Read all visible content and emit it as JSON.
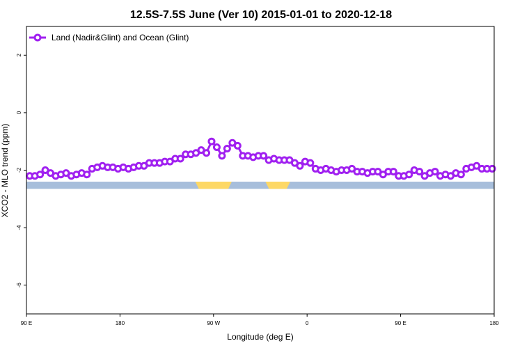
{
  "chart_data": {
    "type": "line",
    "title": "12.5S-7.5S June (Ver 10)   2015-01-01 to 2020-12-18",
    "xlabel": "Longitude (deg E)",
    "ylabel": "XCO2 - MLO trend (ppm)",
    "xlim": [
      90,
      450
    ],
    "ylim": [
      -7,
      3
    ],
    "x_ticks": [
      {
        "value": 90,
        "label": "90 E"
      },
      {
        "value": 162,
        "label": "180"
      },
      {
        "value": 234,
        "label": "90 W"
      },
      {
        "value": 306,
        "label": "0"
      },
      {
        "value": 378,
        "label": "90 E"
      },
      {
        "value": 450,
        "label": "180"
      }
    ],
    "y_ticks": [
      {
        "value": 2,
        "label": "2"
      },
      {
        "value": 0,
        "label": "0"
      },
      {
        "value": -2,
        "label": "-2"
      },
      {
        "value": -4,
        "label": "-4"
      },
      {
        "value": -6,
        "label": "-6"
      }
    ],
    "legend": {
      "placement": "top-left",
      "entries": [
        "Land (Nadir&Glint) and Ocean (Glint)"
      ]
    },
    "series": [
      {
        "name": "Land (Nadir&Glint) and Ocean (Glint)",
        "color": "#a020f0",
        "x": [
          92.5,
          96.5,
          100.5,
          104.5,
          108.5,
          112.5,
          116.5,
          120.5,
          124.5,
          128.5,
          132.5,
          136.5,
          140.5,
          144.5,
          148.5,
          152.5,
          156.5,
          160.5,
          164.5,
          168.5,
          172.5,
          176.5,
          180.5,
          184.5,
          188.5,
          192.5,
          196.5,
          200.5,
          204.5,
          208.5,
          212.5,
          216.5,
          220.5,
          224.5,
          228.5,
          232.5,
          236.5,
          240.5,
          244.5,
          248.5,
          252.5,
          256.5,
          260.5,
          264.5,
          268.5,
          272.5,
          276.5,
          280.5,
          284.5,
          288.5,
          292.5,
          296.5,
          300.5,
          304.5,
          308.5,
          312.5,
          316.5,
          320.5,
          324.5,
          328.5,
          332.5,
          336.5,
          340.5,
          344.5,
          348.5,
          352.5,
          356.5,
          360.5,
          364.5,
          368.5,
          372.5,
          376.5,
          380.5,
          384.5,
          388.5,
          392.5,
          396.5,
          400.5,
          404.5,
          408.5,
          412.5,
          416.5,
          420.5,
          424.5,
          428.5,
          432.5,
          436.5,
          440.5,
          444.5,
          448.5
        ],
        "values": [
          -2.2,
          -2.2,
          -2.15,
          -2.0,
          -2.1,
          -2.2,
          -2.15,
          -2.1,
          -2.2,
          -2.15,
          -2.1,
          -2.15,
          -1.95,
          -1.9,
          -1.85,
          -1.9,
          -1.9,
          -1.95,
          -1.9,
          -1.95,
          -1.9,
          -1.85,
          -1.85,
          -1.75,
          -1.75,
          -1.75,
          -1.7,
          -1.7,
          -1.6,
          -1.6,
          -1.45,
          -1.45,
          -1.4,
          -1.3,
          -1.4,
          -1.0,
          -1.2,
          -1.5,
          -1.25,
          -1.05,
          -1.15,
          -1.5,
          -1.5,
          -1.55,
          -1.5,
          -1.5,
          -1.65,
          -1.6,
          -1.65,
          -1.65,
          -1.65,
          -1.75,
          -1.85,
          -1.7,
          -1.75,
          -1.95,
          -2.0,
          -1.95,
          -2.0,
          -2.05,
          -2.0,
          -2.0,
          -1.95,
          -2.05,
          -2.05,
          -2.1,
          -2.05,
          -2.05,
          -2.15,
          -2.05,
          -2.05,
          -2.2,
          -2.2,
          -2.15,
          -2.0,
          -2.05,
          -2.2,
          -2.1,
          -2.05,
          -2.2,
          -2.15,
          -2.2,
          -2.1,
          -2.15,
          -1.95,
          -1.9,
          -1.85,
          -1.95,
          -1.95,
          -1.95
        ]
      }
    ],
    "map_strip": {
      "ocean_color": "#a7bedb",
      "land_color": "#fdd866",
      "land_segments": [
        [
          220,
          248
        ],
        [
          274,
          293
        ]
      ]
    }
  }
}
